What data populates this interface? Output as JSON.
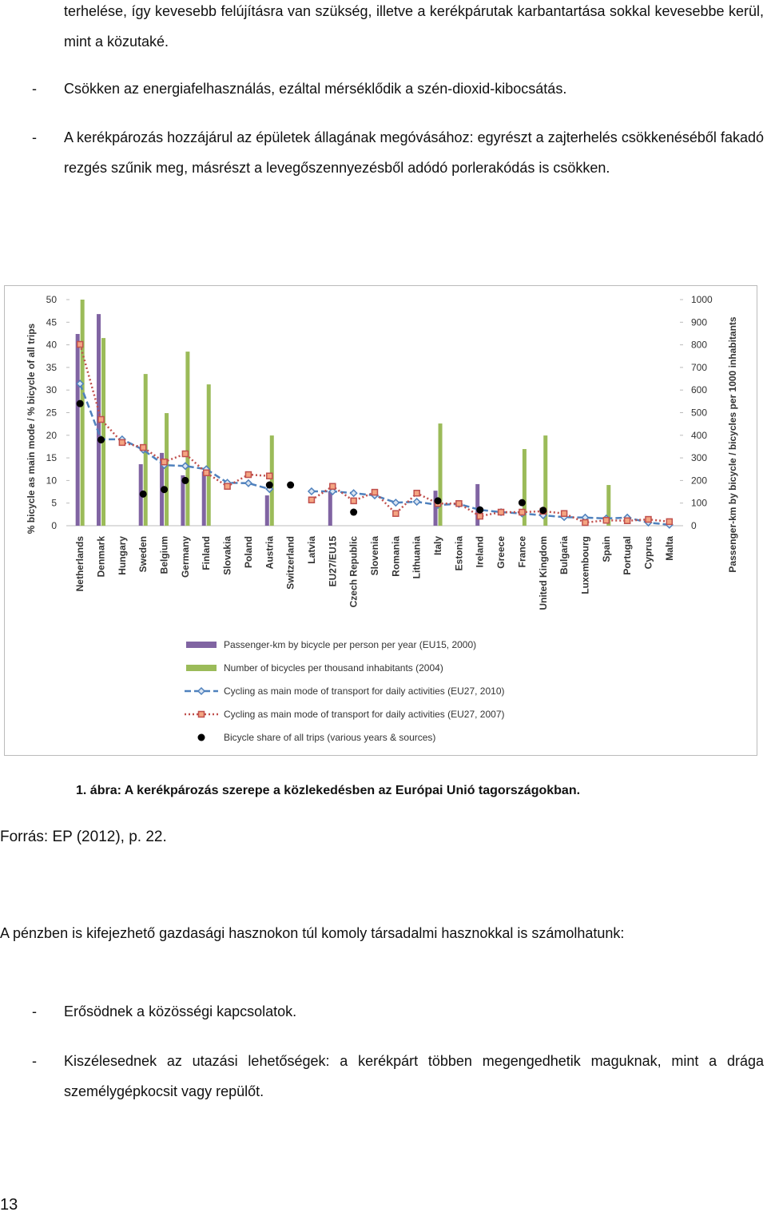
{
  "text_top": "terhelése, így kevesebb felújításra van szükség, illetve a kerékpárutak karbantartása sokkal kevesebbe kerül, mint a közutaké.",
  "bullets_top": [
    {
      "marker": "-",
      "text": "Csökken az energiafelhasználás, ezáltal mérséklődik a szén-dioxid-kibocsátás."
    },
    {
      "marker": "-",
      "text": "A kerékpározás hozzájárul az épületek állagának megóvásához: egyrészt a zajterhelés csökkenéséből fakadó rezgés szűnik meg, másrészt a levegőszennyezésből adódó porlerakódás is csökken."
    }
  ],
  "chart_data": {
    "type": "combo",
    "ylabel": "% bicycle as main mode / % bicycle of all trips",
    "y2label": "Passenger-km by bicycle / bicycles per 1000 inhabitants",
    "ylim": [
      0,
      50
    ],
    "yticks": [
      0,
      5,
      10,
      15,
      20,
      25,
      30,
      35,
      40,
      45,
      50
    ],
    "y2lim": [
      0,
      1000
    ],
    "y2ticks": [
      0,
      100,
      200,
      300,
      400,
      500,
      600,
      700,
      800,
      900,
      1000
    ],
    "categories": [
      "Netherlands",
      "Denmark",
      "Hungary",
      "Sweden",
      "Belgium",
      "Germany",
      "Finland",
      "Slovakia",
      "Poland",
      "Austria",
      "Switzerland",
      "Latvia",
      "EU27/EU15",
      "Czech Republic",
      "Slovenia",
      "Romania",
      "Lithuania",
      "Italy",
      "Estonia",
      "Ireland",
      "Greece",
      "France",
      "United Kingdom",
      "Bulgaria",
      "Luxembourg",
      "Spain",
      "Portugal",
      "Cyprus",
      "Malta"
    ],
    "series": [
      {
        "name": "Passenger-km by bicycle per person per year (EU15, 2000)",
        "type": "bar",
        "axis": "y2",
        "color": "#8064a2",
        "values": [
          848,
          936,
          null,
          272,
          322,
          223,
          240,
          null,
          null,
          134,
          null,
          null,
          152,
          null,
          null,
          null,
          null,
          155,
          null,
          184,
          null,
          null,
          null,
          null,
          null,
          null,
          null,
          null,
          null
        ]
      },
      {
        "name": "Number of bicycles per thousand inhabitants (2004)",
        "type": "bar",
        "axis": "y2",
        "color": "#9bbb59",
        "values": [
          1000,
          830,
          null,
          671,
          498,
          770,
          625,
          null,
          null,
          399,
          null,
          null,
          null,
          null,
          null,
          null,
          null,
          452,
          null,
          null,
          null,
          339,
          399,
          null,
          null,
          180,
          null,
          null,
          null
        ]
      },
      {
        "name": "Cycling as main mode of transport for daily activities (EU27, 2010)",
        "type": "line",
        "line_style": "dashed",
        "marker": "diamond",
        "color": "#4f81bd",
        "values": [
          31.4,
          19.1,
          19.1,
          16.8,
          13.4,
          13.2,
          12.5,
          9.5,
          9.4,
          8.1,
          null,
          7.6,
          7.6,
          7.2,
          6.7,
          5.1,
          5.3,
          4.6,
          4.8,
          3.5,
          3.0,
          2.7,
          2.3,
          1.9,
          1.8,
          1.6,
          1.8,
          0.7,
          0.2
        ]
      },
      {
        "name": "Cycling as main mode of transport for daily activities (EU27, 2007)",
        "type": "line",
        "line_style": "dotted",
        "marker": "square",
        "color": "#c0504d",
        "values": [
          40.1,
          23.5,
          18.4,
          17.3,
          14.1,
          15.9,
          11.7,
          8.7,
          11.3,
          11.0,
          null,
          5.7,
          8.7,
          5.5,
          7.4,
          2.7,
          7.2,
          4.9,
          4.9,
          2.1,
          3.0,
          3.0,
          3.2,
          2.7,
          0.7,
          1.2,
          1.1,
          1.4,
          0.9
        ]
      },
      {
        "name": "Bicycle share of all trips (various years & sources)",
        "type": "scatter",
        "marker": "circle",
        "color": "#000000",
        "values": [
          27,
          19,
          null,
          7,
          8,
          10,
          null,
          null,
          null,
          9,
          9,
          null,
          null,
          3,
          null,
          null,
          null,
          5.5,
          null,
          3.5,
          null,
          5.1,
          3.4,
          null,
          null,
          null,
          null,
          null,
          null
        ]
      }
    ]
  },
  "caption": "1. ábra: A kerékpározás szerepe a közlekedésben az Európai Unió tagországokban.",
  "source": "Forrás: EP (2012), p. 22.",
  "paragraph": "A pénzben is kifejezhető gazdasági hasznokon túl komoly társadalmi hasznokkal is számolhatunk:",
  "bullets_bottom": [
    {
      "marker": "-",
      "text": "Erősödnek a közösségi kapcsolatok."
    },
    {
      "marker": "-",
      "text": "Kiszélesednek az utazási lehetőségek: a kerékpárt többen megengedhetik maguknak, mint a drága személygépkocsit vagy repülőt."
    }
  ],
  "page_number": "13"
}
